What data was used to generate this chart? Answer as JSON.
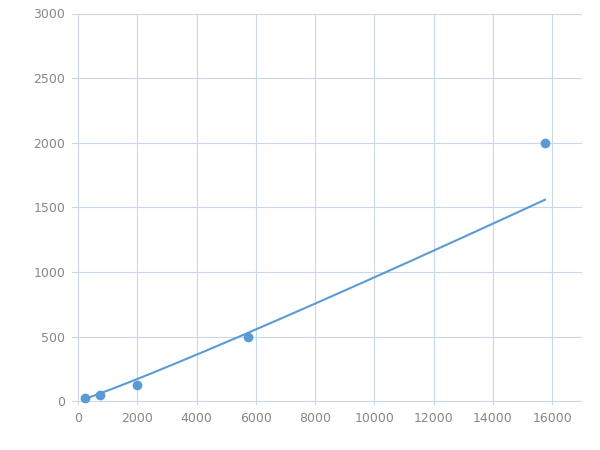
{
  "x_points": [
    250,
    750,
    2000,
    5750,
    15750
  ],
  "y_points": [
    25,
    50,
    125,
    500,
    2000
  ],
  "line_color": "#5b9bd5",
  "marker_color": "#5b9bd5",
  "marker_size": 6,
  "marker_style": "o",
  "line_width": 1.5,
  "xlim": [
    -200,
    17000
  ],
  "ylim": [
    -30,
    3000
  ],
  "xticks": [
    0,
    2000,
    4000,
    6000,
    8000,
    10000,
    12000,
    14000,
    16000
  ],
  "yticks": [
    0,
    500,
    1000,
    1500,
    2000,
    2500,
    3000
  ],
  "grid_color": "#c8d8e8",
  "grid_linestyle": "-",
  "grid_linewidth": 0.8,
  "background_color": "#ffffff",
  "figure_width": 6.0,
  "figure_height": 4.5,
  "dpi": 100,
  "tick_color": "#888888",
  "tick_labelsize": 9
}
